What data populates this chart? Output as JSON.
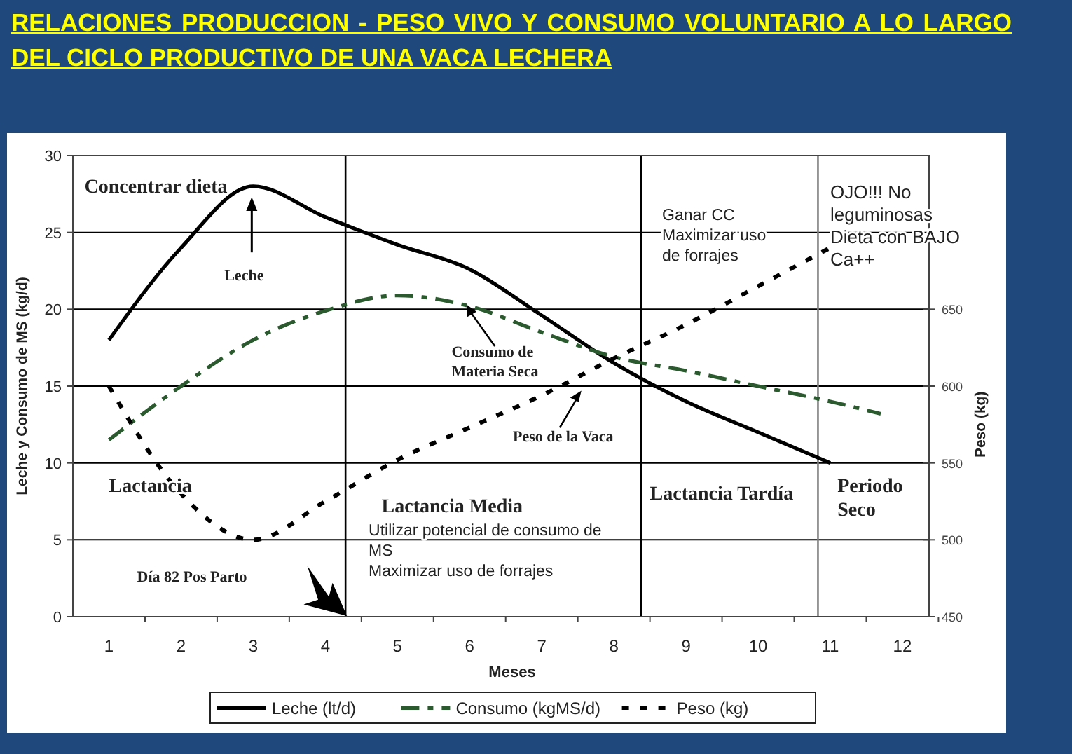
{
  "chart_data": {
    "type": "line",
    "title": "RELACIONES PRODUCCION - PESO VIVO Y CONSUMO VOLUNTARIO A LO LARGO DEL CICLO PRODUCTIVO DE UNA VACA LECHERA",
    "xlabel": "Meses",
    "ylabel": "Leche y Consumo de MS (kg/d)",
    "y2label": "Peso (kg)",
    "xlim": [
      0.5,
      12.37
    ],
    "xticks": [
      1,
      2,
      3,
      4,
      5,
      6,
      7,
      8,
      9,
      10,
      11,
      12
    ],
    "ylim": [
      0,
      30
    ],
    "yticks": [
      0,
      5,
      10,
      15,
      20,
      25,
      30
    ],
    "y2lim": [
      450,
      750
    ],
    "y2ticks": [
      450,
      500,
      550,
      600,
      650
    ],
    "grid": "y",
    "legend": "bottom",
    "series": [
      {
        "name": "Leche (lt/d)",
        "color": "#000000",
        "line_style": "solid",
        "x": [
          1,
          2,
          3,
          4,
          5,
          6,
          7,
          8,
          9,
          10,
          11
        ],
        "values": [
          18,
          24,
          28,
          26,
          24.2,
          22.6,
          19.6,
          16.5,
          14,
          12,
          10
        ]
      },
      {
        "name": "Consumo (kgMS/d)",
        "color": "#2a5a2e",
        "line_style": "dashed",
        "x": [
          1,
          2,
          3,
          4,
          5,
          6,
          7,
          8,
          9,
          10,
          11,
          11.7
        ],
        "values": [
          11.5,
          15,
          18,
          19.9,
          20.9,
          20.2,
          18.5,
          16.9,
          16,
          15,
          14,
          13.2
        ]
      },
      {
        "name": "Peso (kg)",
        "color": "#000000",
        "line_style": "dotted",
        "axis": "y2",
        "x": [
          1,
          2,
          3,
          4,
          5,
          6,
          7,
          8,
          9,
          10,
          11
        ],
        "values": [
          600,
          530,
          500,
          525,
          552,
          573,
          594,
          618,
          640,
          665,
          690
        ]
      }
    ],
    "ref_lines": [
      {
        "axis": "x",
        "value": 4.28,
        "color": "#000000"
      },
      {
        "axis": "x",
        "value": 8.38,
        "color": "#000000"
      },
      {
        "axis": "x",
        "value": 10.83,
        "color": "#808080"
      }
    ],
    "annotations": [
      "Concentrar dieta",
      "Leche",
      "Consumo de\nMateria Seca",
      "Peso de la Vaca",
      "Lactancia",
      "Lactancia Media",
      "Utilizar potencial de consumo de\nMS\nMaximizar uso de forrajes",
      "Día 82 Pos Parto",
      "Ganar CC\nMaximizar uso\nde forrajes",
      "OJO!!!   No\nleguminosas\nDieta con BAJO\nCa++",
      "Lactancia Tardía",
      "Periodo\nSeco"
    ]
  }
}
